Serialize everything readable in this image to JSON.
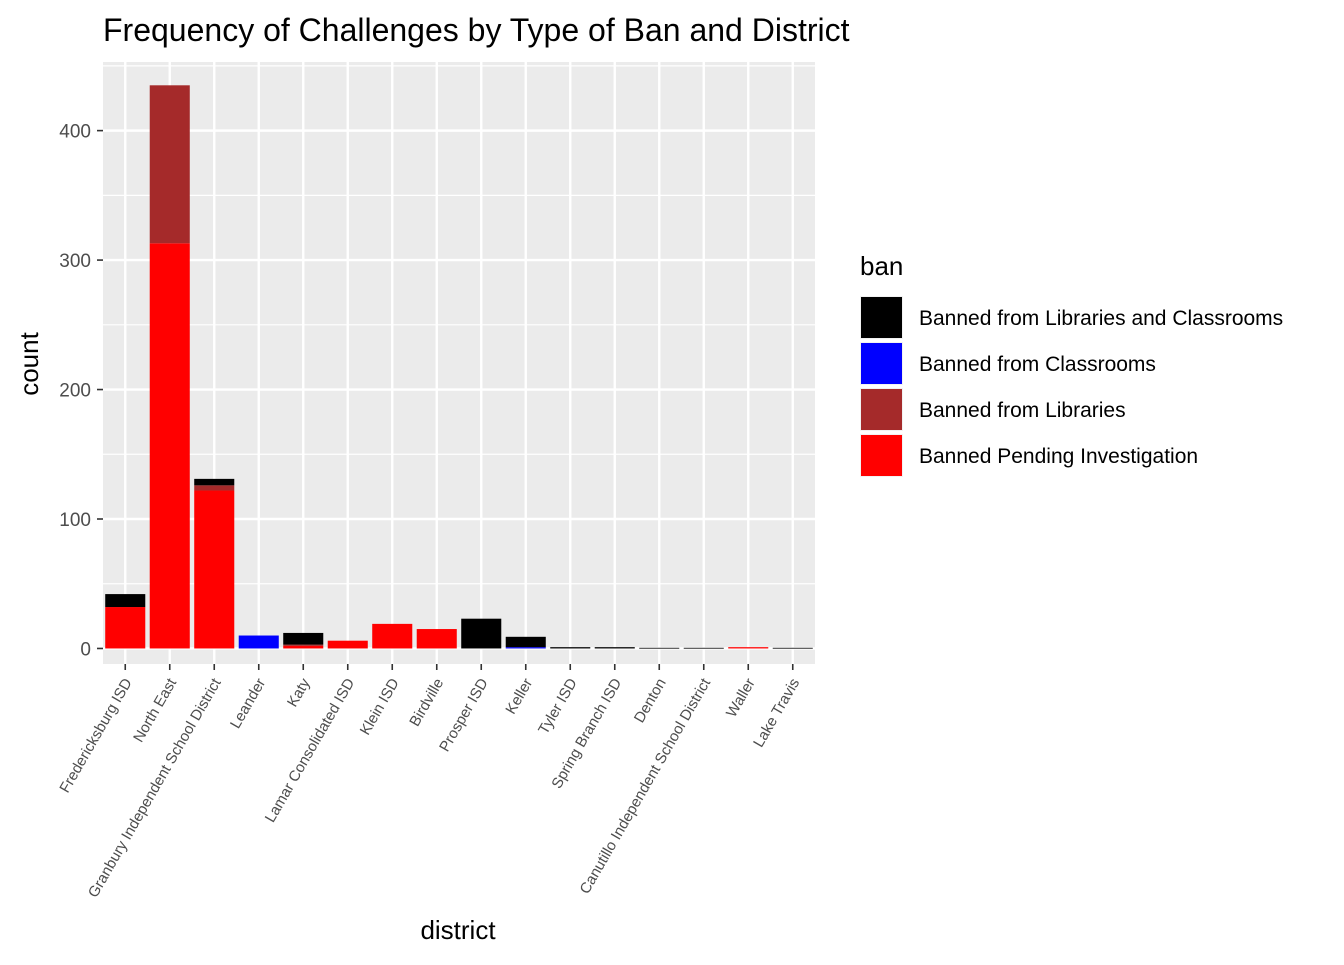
{
  "chart_data": {
    "type": "bar",
    "stacked": true,
    "title": "Frequency of Challenges by Type of Ban and District",
    "xlabel": "district",
    "ylabel": "count",
    "ylim": [
      -12,
      453
    ],
    "y_ticks": [
      0,
      100,
      200,
      300,
      400
    ],
    "y_tick_labels": [
      "0",
      "100",
      "200",
      "300",
      "400"
    ],
    "grid": true,
    "panel_background": "#ebebeb",
    "legend": {
      "title": "ban",
      "position": "right"
    },
    "categories": [
      "Fredericksburg ISD",
      "North East",
      "Granbury Independent School District",
      "Leander",
      "Katy",
      "Lamar Consolidated ISD",
      "Klein ISD",
      "Birdville",
      "Prosper ISD",
      "Keller",
      "Tyler ISD",
      "Spring Branch ISD",
      "Denton",
      "Canutillo Independent School District",
      "Waller",
      "Lake Travis"
    ],
    "series": [
      {
        "name": "Banned Pending Investigation",
        "color": "#ff0000",
        "values": [
          32,
          313,
          122,
          0,
          2,
          6,
          19,
          15,
          0,
          0,
          0,
          0,
          0,
          0,
          1,
          0
        ]
      },
      {
        "name": "Banned from Libraries",
        "color": "#a52a2a",
        "values": [
          0,
          122,
          4,
          0,
          1,
          0,
          0,
          0,
          0,
          0,
          0,
          0,
          0,
          0,
          0,
          0
        ]
      },
      {
        "name": "Banned from Classrooms",
        "color": "#0000ff",
        "values": [
          0,
          0,
          0,
          10,
          0,
          0,
          0,
          0,
          0,
          1,
          0,
          0,
          0,
          0,
          0,
          0
        ]
      },
      {
        "name": "Banned from Libraries and Classrooms",
        "color": "#000000",
        "values": [
          10,
          0,
          5,
          0,
          9,
          0,
          0,
          0,
          23,
          8,
          1,
          1,
          0.5,
          0.5,
          0,
          0.5
        ]
      }
    ],
    "legend_order": [
      "Banned from Libraries and Classrooms",
      "Banned from Classrooms",
      "Banned from Libraries",
      "Banned Pending Investigation"
    ]
  }
}
